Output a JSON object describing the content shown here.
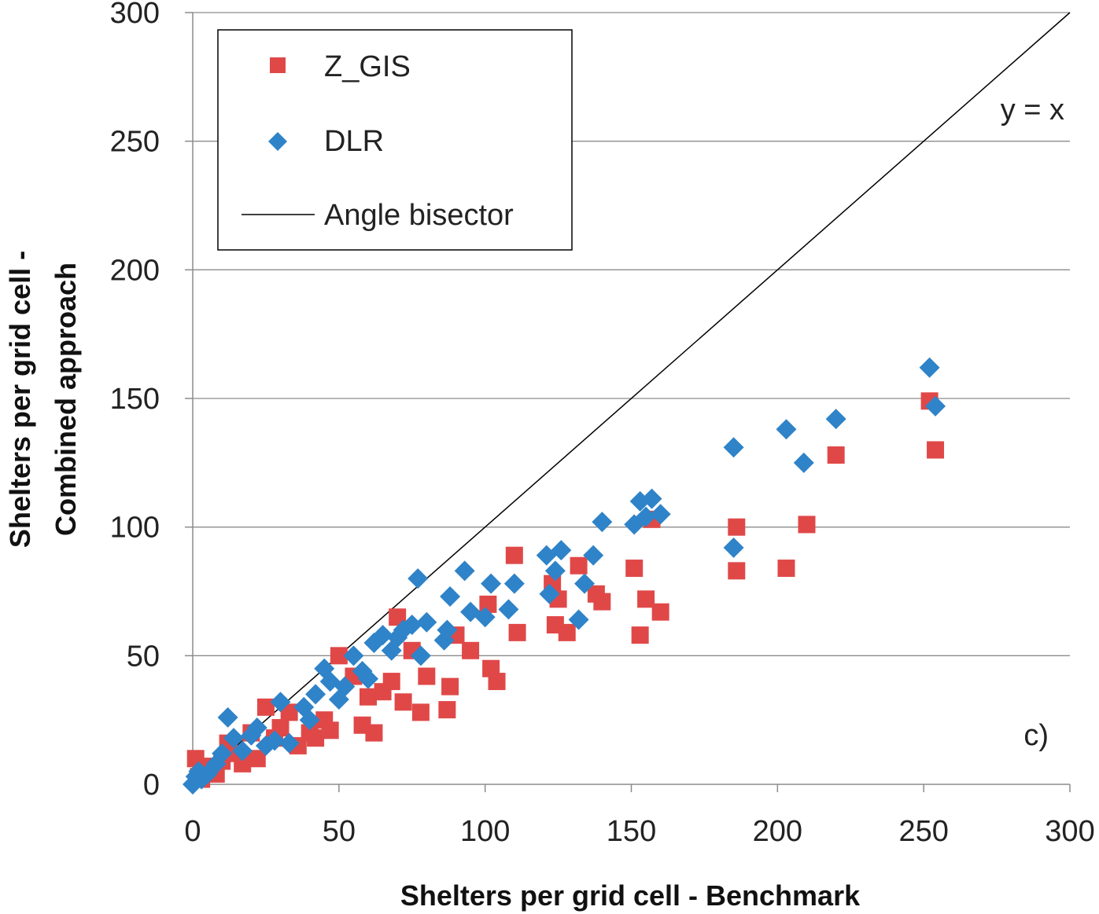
{
  "colors": {
    "z_gis": "#e04848",
    "dlr": "#2f83c8",
    "bisector": "#000000",
    "grid": "#8c8c8c"
  },
  "chart_data": {
    "type": "scatter",
    "panel_label": "c)",
    "xlabel": "Shelters per grid cell - Benchmark",
    "ylabel_line1": "Shelters per grid cell -",
    "ylabel_line2": "Combined  approach",
    "xlim": [
      0,
      300
    ],
    "ylim": [
      0,
      300
    ],
    "xticks": [
      "0",
      "50",
      "100",
      "150",
      "200",
      "250",
      "300"
    ],
    "yticks": [
      "0",
      "50",
      "100",
      "150",
      "200",
      "250",
      "300"
    ],
    "grid": "horizontal",
    "legend_position": "top-left",
    "bisector": {
      "name": "Angle bisector",
      "annotation": "y = x"
    },
    "series": [
      {
        "name": "Z_GIS",
        "marker": "square",
        "points": [
          [
            1,
            10
          ],
          [
            2,
            3
          ],
          [
            3,
            2
          ],
          [
            5,
            7
          ],
          [
            8,
            4
          ],
          [
            10,
            9
          ],
          [
            12,
            16
          ],
          [
            15,
            12
          ],
          [
            17,
            8
          ],
          [
            20,
            20
          ],
          [
            22,
            10
          ],
          [
            25,
            30
          ],
          [
            28,
            18
          ],
          [
            30,
            22
          ],
          [
            33,
            28
          ],
          [
            36,
            15
          ],
          [
            40,
            20
          ],
          [
            42,
            18
          ],
          [
            45,
            25
          ],
          [
            47,
            21
          ],
          [
            50,
            50
          ],
          [
            55,
            42
          ],
          [
            58,
            23
          ],
          [
            60,
            34
          ],
          [
            62,
            20
          ],
          [
            65,
            36
          ],
          [
            68,
            40
          ],
          [
            70,
            65
          ],
          [
            72,
            32
          ],
          [
            75,
            52
          ],
          [
            78,
            28
          ],
          [
            80,
            42
          ],
          [
            87,
            29
          ],
          [
            88,
            38
          ],
          [
            90,
            58
          ],
          [
            95,
            52
          ],
          [
            101,
            70
          ],
          [
            102,
            45
          ],
          [
            104,
            40
          ],
          [
            110,
            89
          ],
          [
            111,
            59
          ],
          [
            123,
            78
          ],
          [
            124,
            62
          ],
          [
            125,
            72
          ],
          [
            128,
            59
          ],
          [
            132,
            85
          ],
          [
            138,
            74
          ],
          [
            140,
            71
          ],
          [
            151,
            84
          ],
          [
            153,
            58
          ],
          [
            155,
            72
          ],
          [
            157,
            103
          ],
          [
            160,
            67
          ],
          [
            186,
            100
          ],
          [
            186,
            83
          ],
          [
            203,
            84
          ],
          [
            210,
            101
          ],
          [
            220,
            128
          ],
          [
            252,
            149
          ],
          [
            254,
            130
          ]
        ]
      },
      {
        "name": "DLR",
        "marker": "diamond",
        "points": [
          [
            0,
            0
          ],
          [
            1,
            3
          ],
          [
            2,
            5
          ],
          [
            3,
            2
          ],
          [
            5,
            4
          ],
          [
            8,
            8
          ],
          [
            10,
            12
          ],
          [
            12,
            26
          ],
          [
            14,
            18
          ],
          [
            17,
            13
          ],
          [
            20,
            19
          ],
          [
            22,
            22
          ],
          [
            25,
            15
          ],
          [
            28,
            17
          ],
          [
            30,
            32
          ],
          [
            33,
            16
          ],
          [
            38,
            30
          ],
          [
            40,
            25
          ],
          [
            42,
            35
          ],
          [
            45,
            45
          ],
          [
            47,
            40
          ],
          [
            50,
            33
          ],
          [
            52,
            38
          ],
          [
            55,
            50
          ],
          [
            58,
            44
          ],
          [
            60,
            41
          ],
          [
            62,
            55
          ],
          [
            65,
            58
          ],
          [
            68,
            52
          ],
          [
            70,
            57
          ],
          [
            72,
            60
          ],
          [
            75,
            62
          ],
          [
            77,
            80
          ],
          [
            78,
            50
          ],
          [
            80,
            63
          ],
          [
            86,
            56
          ],
          [
            87,
            60
          ],
          [
            88,
            73
          ],
          [
            93,
            83
          ],
          [
            95,
            67
          ],
          [
            100,
            65
          ],
          [
            102,
            78
          ],
          [
            108,
            68
          ],
          [
            110,
            78
          ],
          [
            121,
            89
          ],
          [
            122,
            74
          ],
          [
            124,
            83
          ],
          [
            126,
            91
          ],
          [
            132,
            64
          ],
          [
            134,
            78
          ],
          [
            137,
            89
          ],
          [
            140,
            102
          ],
          [
            151,
            101
          ],
          [
            153,
            110
          ],
          [
            155,
            104
          ],
          [
            157,
            111
          ],
          [
            160,
            105
          ],
          [
            185,
            131
          ],
          [
            185,
            92
          ],
          [
            203,
            138
          ],
          [
            209,
            125
          ],
          [
            220,
            142
          ],
          [
            252,
            162
          ],
          [
            254,
            147
          ]
        ]
      }
    ]
  }
}
